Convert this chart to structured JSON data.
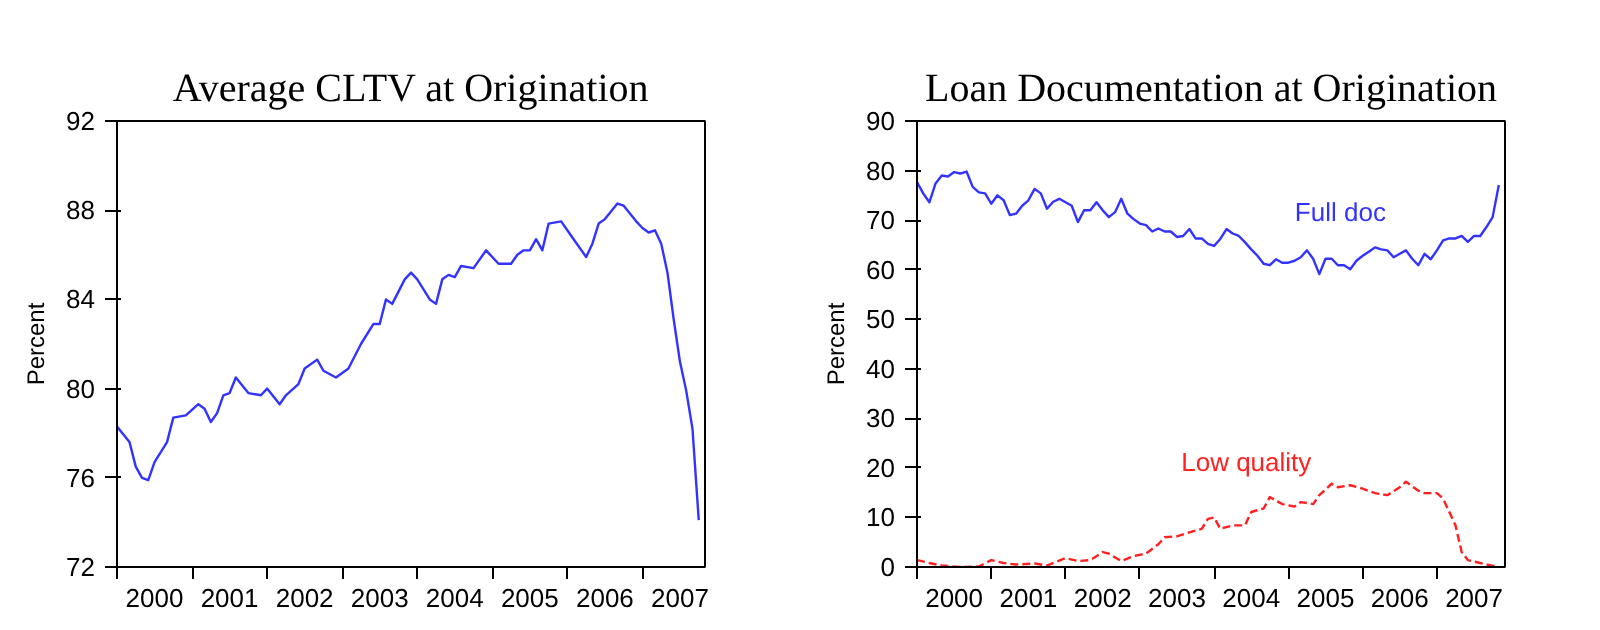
{
  "chart_data": [
    {
      "type": "line",
      "title": "Average CLTV at Origination",
      "ylabel": "Percent",
      "xlim": [
        "2000-01",
        "2007-11"
      ],
      "ylim": [
        72,
        92
      ],
      "yticks": [
        72,
        76,
        80,
        84,
        88,
        92
      ],
      "grid": false,
      "marker": "none",
      "line_style": "solid",
      "xticks": [
        {
          "value": "2000-01",
          "label": null
        },
        {
          "value": "2000-07",
          "label": "2000"
        },
        {
          "value": "2001-01",
          "label": null
        },
        {
          "value": "2001-07",
          "label": "2001"
        },
        {
          "value": "2002-01",
          "label": null
        },
        {
          "value": "2002-07",
          "label": "2002"
        },
        {
          "value": "2003-01",
          "label": null
        },
        {
          "value": "2003-07",
          "label": "2003"
        },
        {
          "value": "2004-01",
          "label": null
        },
        {
          "value": "2004-07",
          "label": "2004"
        },
        {
          "value": "2005-01",
          "label": null
        },
        {
          "value": "2005-07",
          "label": "2005"
        },
        {
          "value": "2006-01",
          "label": null
        },
        {
          "value": "2006-07",
          "label": "2006"
        },
        {
          "value": "2007-01",
          "label": null
        },
        {
          "value": "2007-07",
          "label": "2007"
        }
      ],
      "series": [
        {
          "color": "#3333ff",
          "x": [
            "2000-01",
            "2000-03",
            "2000-04",
            "2000-05",
            "2000-06",
            "2000-07",
            "2000-09",
            "2000-10",
            "2000-12",
            "2001-02",
            "2001-03",
            "2001-04",
            "2001-05",
            "2001-06",
            "2001-07",
            "2001-08",
            "2001-10",
            "2001-12",
            "2002-01",
            "2002-03",
            "2002-04",
            "2002-06",
            "2002-07",
            "2002-09",
            "2002-10",
            "2002-12",
            "2003-02",
            "2003-04",
            "2003-06",
            "2003-07",
            "2003-08",
            "2003-09",
            "2003-11",
            "2003-12",
            "2004-01",
            "2004-03",
            "2004-04",
            "2004-05",
            "2004-06",
            "2004-07",
            "2004-08",
            "2004-10",
            "2004-12",
            "2005-02",
            "2005-04",
            "2005-05",
            "2005-06",
            "2005-07",
            "2005-08",
            "2005-09",
            "2005-10",
            "2005-12",
            "2006-02",
            "2006-04",
            "2006-05",
            "2006-06",
            "2006-07",
            "2006-09",
            "2006-10",
            "2006-12",
            "2007-01",
            "2007-02",
            "2007-03",
            "2007-04",
            "2007-05",
            "2007-06",
            "2007-07",
            "2007-08",
            "2007-09",
            "2007-10"
          ],
          "values": [
            78.3,
            77.6,
            76.5,
            76.0,
            75.9,
            76.7,
            77.6,
            78.7,
            78.8,
            79.3,
            79.1,
            78.5,
            78.9,
            79.7,
            79.8,
            80.5,
            79.8,
            79.7,
            80.0,
            79.3,
            79.7,
            80.2,
            80.9,
            81.3,
            80.8,
            80.5,
            80.9,
            82.0,
            82.9,
            82.9,
            84.0,
            83.8,
            84.9,
            85.2,
            84.9,
            84.0,
            83.8,
            84.9,
            85.1,
            85.0,
            85.5,
            85.4,
            86.2,
            85.6,
            85.6,
            86.0,
            86.2,
            86.2,
            86.7,
            86.2,
            87.4,
            87.5,
            86.7,
            85.9,
            86.5,
            87.4,
            87.6,
            88.3,
            88.2,
            87.5,
            87.2,
            87.0,
            87.1,
            86.5,
            85.2,
            83.1,
            81.2,
            79.9,
            78.2,
            74.1
          ]
        }
      ]
    },
    {
      "type": "line",
      "title": "Loan Documentation at Origination",
      "ylabel": "Percent",
      "xlim": [
        "2000-01",
        "2007-12"
      ],
      "ylim": [
        0,
        90
      ],
      "yticks": [
        0,
        10,
        20,
        30,
        40,
        50,
        60,
        70,
        80,
        90
      ],
      "grid": false,
      "marker": "none",
      "xticks": [
        {
          "value": "2000-01",
          "label": null
        },
        {
          "value": "2000-07",
          "label": "2000"
        },
        {
          "value": "2001-01",
          "label": null
        },
        {
          "value": "2001-07",
          "label": "2001"
        },
        {
          "value": "2002-01",
          "label": null
        },
        {
          "value": "2002-07",
          "label": "2002"
        },
        {
          "value": "2003-01",
          "label": null
        },
        {
          "value": "2003-07",
          "label": "2003"
        },
        {
          "value": "2004-01",
          "label": null
        },
        {
          "value": "2004-07",
          "label": "2004"
        },
        {
          "value": "2005-01",
          "label": null
        },
        {
          "value": "2005-07",
          "label": "2005"
        },
        {
          "value": "2006-01",
          "label": null
        },
        {
          "value": "2006-07",
          "label": "2006"
        },
        {
          "value": "2007-01",
          "label": null
        },
        {
          "value": "2007-07",
          "label": "2007"
        }
      ],
      "series": [
        {
          "name": "Full doc",
          "color": "#3333ff",
          "line_style": "solid",
          "x": [
            "2000-01",
            "2000-02",
            "2000-03",
            "2000-04",
            "2000-05",
            "2000-06",
            "2000-07",
            "2000-08",
            "2000-09",
            "2000-10",
            "2000-11",
            "2000-12",
            "2001-01",
            "2001-02",
            "2001-03",
            "2001-04",
            "2001-05",
            "2001-06",
            "2001-07",
            "2001-08",
            "2001-09",
            "2001-10",
            "2001-11",
            "2001-12",
            "2002-01",
            "2002-02",
            "2002-03",
            "2002-04",
            "2002-05",
            "2002-06",
            "2002-07",
            "2002-08",
            "2002-09",
            "2002-10",
            "2002-11",
            "2002-12",
            "2003-01",
            "2003-02",
            "2003-03",
            "2003-04",
            "2003-05",
            "2003-06",
            "2003-07",
            "2003-08",
            "2003-09",
            "2003-10",
            "2003-11",
            "2003-12",
            "2004-01",
            "2004-02",
            "2004-03",
            "2004-04",
            "2004-05",
            "2004-06",
            "2004-07",
            "2004-08",
            "2004-09",
            "2004-10",
            "2004-11",
            "2004-12",
            "2005-01",
            "2005-02",
            "2005-03",
            "2005-04",
            "2005-05",
            "2005-06",
            "2005-07",
            "2005-08",
            "2005-09",
            "2005-10",
            "2005-11",
            "2005-12",
            "2006-01",
            "2006-02",
            "2006-03",
            "2006-04",
            "2006-05",
            "2006-06",
            "2006-07",
            "2006-08",
            "2006-09",
            "2006-10",
            "2006-11",
            "2006-12",
            "2007-01",
            "2007-02",
            "2007-03",
            "2007-04",
            "2007-05",
            "2007-06",
            "2007-07",
            "2007-08",
            "2007-09",
            "2007-10",
            "2007-11"
          ],
          "values": [
            77.7,
            75.4,
            73.6,
            77.4,
            79.0,
            78.8,
            79.7,
            79.4,
            79.8,
            76.7,
            75.6,
            75.4,
            73.3,
            75.0,
            74.0,
            71.0,
            71.3,
            72.9,
            74.0,
            76.3,
            75.4,
            72.3,
            73.7,
            74.3,
            73.6,
            72.9,
            69.6,
            72.0,
            72.0,
            73.6,
            72.0,
            70.6,
            71.6,
            74.3,
            71.3,
            70.2,
            69.3,
            69.0,
            67.7,
            68.3,
            67.7,
            67.7,
            66.6,
            66.8,
            68.2,
            66.3,
            66.3,
            65.2,
            64.8,
            66.2,
            68.2,
            67.3,
            66.8,
            65.5,
            64.1,
            62.8,
            61.2,
            60.9,
            62.1,
            61.4,
            61.4,
            61.8,
            62.5,
            63.9,
            62.2,
            59.1,
            62.2,
            62.2,
            60.9,
            60.9,
            60.1,
            61.8,
            62.8,
            63.6,
            64.5,
            64.1,
            63.9,
            62.5,
            63.2,
            63.9,
            62.2,
            60.9,
            63.2,
            62.1,
            63.9,
            65.9,
            66.3,
            66.3,
            66.8,
            65.6,
            66.8,
            66.8,
            68.6,
            70.6,
            77.1
          ]
        },
        {
          "name": "Low quality",
          "color": "#ff2020",
          "line_style": "dashed",
          "x": [
            "2000-01",
            "2000-03",
            "2000-05",
            "2000-08",
            "2000-11",
            "2001-01",
            "2001-03",
            "2001-05",
            "2001-08",
            "2001-10",
            "2002-01",
            "2002-03",
            "2002-05",
            "2002-07",
            "2002-08",
            "2002-10",
            "2002-12",
            "2003-02",
            "2003-04",
            "2003-05",
            "2003-07",
            "2003-09",
            "2003-11",
            "2003-12",
            "2004-01",
            "2004-02",
            "2004-04",
            "2004-06",
            "2004-07",
            "2004-09",
            "2004-10",
            "2004-12",
            "2005-02",
            "2005-03",
            "2005-05",
            "2005-06",
            "2005-08",
            "2005-09",
            "2005-11",
            "2006-01",
            "2006-03",
            "2006-05",
            "2006-07",
            "2006-08",
            "2006-10",
            "2006-11",
            "2007-01",
            "2007-02",
            "2007-04",
            "2007-05",
            "2007-06",
            "2007-08",
            "2007-09",
            "2007-11"
          ],
          "values": [
            1.4,
            0.8,
            0.3,
            0,
            0.1,
            1.4,
            0.8,
            0.5,
            0.7,
            0.3,
            1.8,
            1.2,
            1.4,
            3.0,
            2.7,
            1.2,
            2.2,
            2.7,
            4.6,
            6.0,
            6.2,
            7.0,
            7.7,
            9.7,
            10.0,
            7.7,
            8.4,
            8.4,
            11.1,
            11.8,
            14.1,
            12.7,
            12.2,
            13.1,
            12.7,
            14.5,
            16.8,
            16.1,
            16.5,
            15.8,
            14.9,
            14.5,
            16.1,
            17.2,
            15.4,
            14.9,
            14.9,
            13.8,
            8.4,
            3.0,
            1.4,
            0.8,
            0.5,
            0
          ]
        }
      ]
    }
  ]
}
